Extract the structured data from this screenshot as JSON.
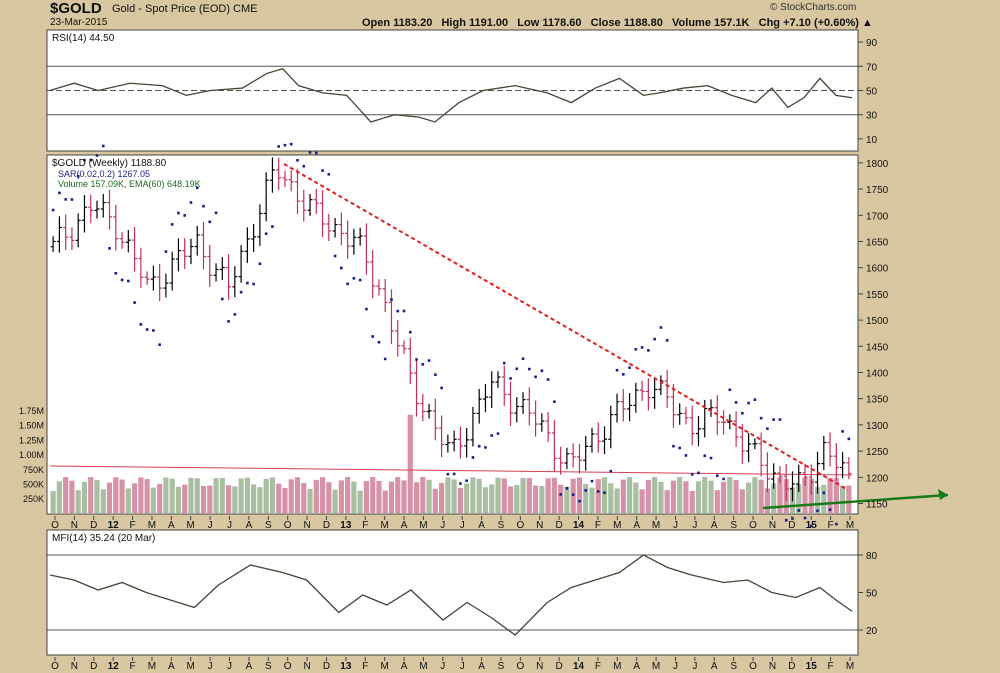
{
  "header": {
    "symbol": "$GOLD",
    "name": "Gold - Spot Price (EOD)  CME",
    "date": "23-Mar-2015",
    "quote": "Open 1183.20   High 1191.00   Low 1178.60   Close 1188.80   Volume 157.1K   Chg +7.10 (+0.60%) ▲",
    "copyright": "© StockCharts.com"
  },
  "colors": {
    "up": "#000000",
    "down": "#c0305a",
    "sar": "#1c1c8c",
    "trend_down": "#e02020",
    "trend_up": "#1a7a1a",
    "vol_up": "#a9bfa2",
    "vol_down": "#d693a8",
    "osc_line": "#3c4a34"
  },
  "x_labels": [
    "O",
    "N",
    "D",
    "12",
    "F",
    "M",
    "A",
    "M",
    "J",
    "J",
    "A",
    "S",
    "O",
    "N",
    "D",
    "13",
    "F",
    "M",
    "A",
    "M",
    "J",
    "J",
    "A",
    "S",
    "O",
    "N",
    "D",
    "14",
    "F",
    "M",
    "A",
    "M",
    "J",
    "J",
    "A",
    "S",
    "O",
    "N",
    "D",
    "15",
    "F",
    "M"
  ],
  "chart_data": [
    {
      "type": "line",
      "title": "RSI(14) 44.50",
      "ylim": [
        0,
        100
      ],
      "yticks": [
        "90",
        "70",
        "50",
        "30",
        "10"
      ],
      "ref_levels": [
        70,
        50,
        30
      ],
      "points": [
        [
          0,
          50
        ],
        [
          0.03,
          56
        ],
        [
          0.06,
          50
        ],
        [
          0.1,
          56
        ],
        [
          0.14,
          54
        ],
        [
          0.17,
          46
        ],
        [
          0.2,
          50
        ],
        [
          0.24,
          52
        ],
        [
          0.27,
          64
        ],
        [
          0.29,
          68
        ],
        [
          0.31,
          54
        ],
        [
          0.34,
          48
        ],
        [
          0.37,
          46
        ],
        [
          0.4,
          24
        ],
        [
          0.43,
          30
        ],
        [
          0.46,
          28
        ],
        [
          0.48,
          24
        ],
        [
          0.51,
          40
        ],
        [
          0.54,
          50
        ],
        [
          0.58,
          54
        ],
        [
          0.62,
          48
        ],
        [
          0.65,
          40
        ],
        [
          0.68,
          52
        ],
        [
          0.71,
          60
        ],
        [
          0.74,
          46
        ],
        [
          0.76,
          48
        ],
        [
          0.79,
          52
        ],
        [
          0.82,
          54
        ],
        [
          0.85,
          46
        ],
        [
          0.88,
          40
        ],
        [
          0.9,
          52
        ],
        [
          0.92,
          36
        ],
        [
          0.94,
          44
        ],
        [
          0.96,
          60
        ],
        [
          0.98,
          46
        ],
        [
          1.0,
          44
        ]
      ]
    },
    {
      "type": "ohlc",
      "title": "$GOLD (Weekly) 1188.80",
      "legend": [
        "SAR(0.02,0.2) 1267.05",
        "Volume 157.09K, EMA(60) 648.19K"
      ],
      "yticks": [
        "1800",
        "1750",
        "1700",
        "1650",
        "1600",
        "1550",
        "1500",
        "1450",
        "1400",
        "1350",
        "1300",
        "1250",
        "1200",
        "1150"
      ],
      "ylim": [
        1130,
        1815
      ],
      "volume_ticks": [
        "1.75M",
        "1.50M",
        "1.25M",
        "1.00M",
        "750K",
        "500K",
        "250K"
      ],
      "annotations": [
        "downtrend line from Sep-2012 high",
        "uptrend support line from Nov-2014 low"
      ]
    },
    {
      "type": "line",
      "title": "MFI(14) 35.24 (20 Mar)",
      "ylim": [
        0,
        100
      ],
      "yticks": [
        "80",
        "50",
        "20"
      ],
      "ref_levels": [
        80,
        20
      ],
      "points": [
        [
          0,
          64
        ],
        [
          0.03,
          60
        ],
        [
          0.06,
          52
        ],
        [
          0.09,
          58
        ],
        [
          0.12,
          50
        ],
        [
          0.15,
          44
        ],
        [
          0.18,
          38
        ],
        [
          0.21,
          56
        ],
        [
          0.25,
          72
        ],
        [
          0.29,
          66
        ],
        [
          0.32,
          60
        ],
        [
          0.36,
          34
        ],
        [
          0.39,
          48
        ],
        [
          0.42,
          40
        ],
        [
          0.45,
          52
        ],
        [
          0.49,
          28
        ],
        [
          0.52,
          42
        ],
        [
          0.55,
          30
        ],
        [
          0.58,
          16
        ],
        [
          0.62,
          42
        ],
        [
          0.65,
          54
        ],
        [
          0.68,
          60
        ],
        [
          0.71,
          66
        ],
        [
          0.74,
          80
        ],
        [
          0.77,
          70
        ],
        [
          0.8,
          64
        ],
        [
          0.84,
          58
        ],
        [
          0.87,
          60
        ],
        [
          0.9,
          50
        ],
        [
          0.93,
          46
        ],
        [
          0.96,
          54
        ],
        [
          0.98,
          44
        ],
        [
          1.0,
          35
        ]
      ]
    }
  ]
}
